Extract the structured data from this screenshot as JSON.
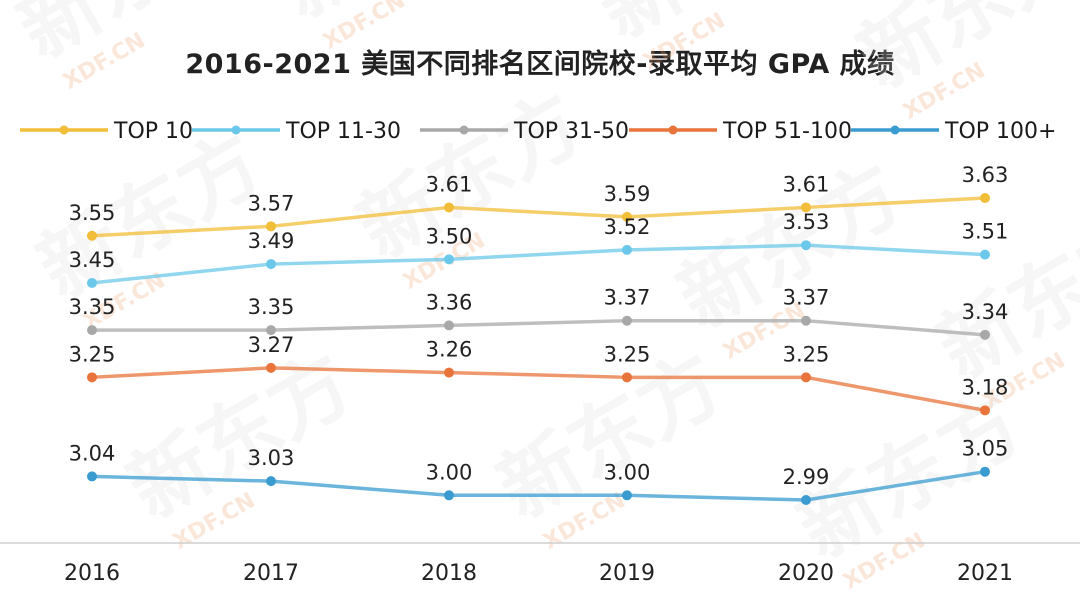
{
  "title": "2016-2021 美国不同排名区间院校-录取平均 GPA 成绩",
  "watermark": {
    "main": "新东方",
    "sub": "XDF.CN"
  },
  "chart_data": {
    "type": "line",
    "title": "2016-2021 美国不同排名区间院校-录取平均 GPA 成绩",
    "categories": [
      "2016",
      "2017",
      "2018",
      "2019",
      "2020",
      "2021"
    ],
    "xlabel": "",
    "ylabel": "",
    "grid": false,
    "legend_position": "top",
    "series": [
      {
        "name": "TOP 10",
        "color": "#f2bd38",
        "values": [
          3.55,
          3.57,
          3.61,
          3.59,
          3.61,
          3.63
        ]
      },
      {
        "name": "TOP 11-30",
        "color": "#6cc8ea",
        "values": [
          3.45,
          3.49,
          3.5,
          3.52,
          3.53,
          3.51
        ]
      },
      {
        "name": "TOP 31-50",
        "color": "#a8a8a8",
        "values": [
          3.35,
          3.35,
          3.36,
          3.37,
          3.37,
          3.34
        ]
      },
      {
        "name": "TOP 51-100",
        "color": "#e8743b",
        "values": [
          3.25,
          3.27,
          3.26,
          3.25,
          3.25,
          3.18
        ]
      },
      {
        "name": "TOP 100+",
        "color": "#3a9bd0",
        "values": [
          3.04,
          3.03,
          3.0,
          3.0,
          2.99,
          3.05
        ]
      }
    ],
    "value_labels": [
      [
        "3.55",
        "3.57",
        "3.61",
        "3.59",
        "3.61",
        "3.63"
      ],
      [
        "3.45",
        "3.49",
        "3.50",
        "3.52",
        "3.53",
        "3.51"
      ],
      [
        "3.35",
        "3.35",
        "3.36",
        "3.37",
        "3.37",
        "3.34"
      ],
      [
        "3.25",
        "3.27",
        "3.26",
        "3.25",
        "3.25",
        "3.18"
      ],
      [
        "3.04",
        "3.03",
        "3.00",
        "3.00",
        "2.99",
        "3.05"
      ]
    ]
  }
}
